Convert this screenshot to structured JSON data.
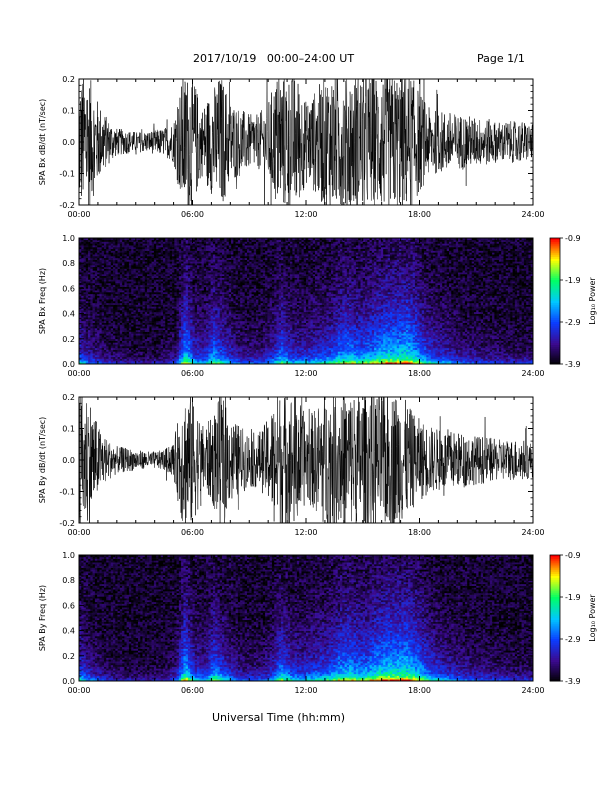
{
  "header": {
    "title": "2017/10/19   00:00–24:00 UT",
    "page": "Page 1/1"
  },
  "footer": {
    "xlabel": "Universal Time (hh:mm)"
  },
  "x_tick_labels": [
    "00:00",
    "06:00",
    "12:00",
    "18:00",
    "24:00"
  ],
  "colorbar": {
    "title": "Log₁₀ Power",
    "tick_labels": [
      "-0.9",
      "-1.9",
      "-2.9",
      "-3.9"
    ],
    "colors": [
      "#000000",
      "#3b0a8f",
      "#0b3dff",
      "#00c8ff",
      "#00ff66",
      "#ffff00",
      "#ff0000"
    ]
  },
  "chart_data": [
    {
      "type": "line",
      "ylabel": "SPA Bx dB/dt (nT/sec)",
      "xlim": [
        0,
        24
      ],
      "ylim": [
        -0.2,
        0.2
      ],
      "y_tick_labels": [
        "0.2",
        "0.1",
        "0.0",
        "-0.1",
        "-0.2"
      ],
      "x": [
        0,
        0.5,
        1,
        1.5,
        2,
        2.5,
        3,
        3.5,
        4,
        4.5,
        5,
        5.5,
        6,
        6.5,
        7,
        7.5,
        8,
        8.5,
        9,
        9.5,
        10,
        10.5,
        11,
        11.5,
        12,
        12.5,
        13,
        13.5,
        14,
        14.5,
        15,
        15.5,
        16,
        16.5,
        17,
        17.5,
        18,
        18.5,
        19,
        19.5,
        20,
        20.5,
        21,
        21.5,
        22,
        22.5,
        23,
        23.5,
        24
      ],
      "amplitude": [
        0.2,
        0.2,
        0.12,
        0.07,
        0.04,
        0.035,
        0.03,
        0.03,
        0.035,
        0.04,
        0.06,
        0.2,
        0.2,
        0.1,
        0.15,
        0.2,
        0.12,
        0.1,
        0.08,
        0.08,
        0.12,
        0.2,
        0.2,
        0.2,
        0.12,
        0.15,
        0.2,
        0.2,
        0.2,
        0.2,
        0.2,
        0.2,
        0.2,
        0.2,
        0.2,
        0.2,
        0.15,
        0.1,
        0.09,
        0.09,
        0.08,
        0.08,
        0.07,
        0.07,
        0.06,
        0.06,
        0.06,
        0.06,
        0.05
      ]
    },
    {
      "type": "heatmap",
      "ylabel": "SPA Bx Freq (Hz)",
      "xlim": [
        0,
        24
      ],
      "ylim": [
        0,
        1
      ],
      "y_tick_labels": [
        "1.0",
        "0.8",
        "0.6",
        "0.4",
        "0.2",
        "0.0"
      ],
      "zlim": [
        -3.9,
        -0.9
      ],
      "activity": [
        0.55,
        0.35,
        0.3,
        0.2,
        0.15,
        0.1,
        0.1,
        0.1,
        0.1,
        0.15,
        0.25,
        0.9,
        0.5,
        0.45,
        0.75,
        0.55,
        0.4,
        0.3,
        0.3,
        0.3,
        0.45,
        0.7,
        0.5,
        0.45,
        0.5,
        0.55,
        0.6,
        0.75,
        0.8,
        0.7,
        0.75,
        0.85,
        0.9,
        0.9,
        0.95,
        0.8,
        0.6,
        0.5,
        0.45,
        0.35,
        0.3,
        0.3,
        0.25,
        0.25,
        0.2,
        0.2,
        0.2,
        0.2
      ]
    },
    {
      "type": "line",
      "ylabel": "SPA By dB/dt (nT/sec)",
      "xlim": [
        0,
        24
      ],
      "ylim": [
        -0.2,
        0.2
      ],
      "y_tick_labels": [
        "0.2",
        "0.1",
        "0.0",
        "-0.1",
        "-0.2"
      ],
      "x": [
        0,
        0.5,
        1,
        1.5,
        2,
        2.5,
        3,
        3.5,
        4,
        4.5,
        5,
        5.5,
        6,
        6.5,
        7,
        7.5,
        8,
        8.5,
        9,
        9.5,
        10,
        10.5,
        11,
        11.5,
        12,
        12.5,
        13,
        13.5,
        14,
        14.5,
        15,
        15.5,
        16,
        16.5,
        17,
        17.5,
        18,
        18.5,
        19,
        19.5,
        20,
        20.5,
        21,
        21.5,
        22,
        22.5,
        23,
        23.5,
        24
      ],
      "amplitude": [
        0.2,
        0.2,
        0.1,
        0.06,
        0.04,
        0.035,
        0.03,
        0.025,
        0.025,
        0.03,
        0.05,
        0.2,
        0.2,
        0.1,
        0.12,
        0.2,
        0.12,
        0.1,
        0.08,
        0.08,
        0.12,
        0.2,
        0.2,
        0.2,
        0.12,
        0.15,
        0.2,
        0.2,
        0.2,
        0.2,
        0.2,
        0.2,
        0.2,
        0.2,
        0.2,
        0.15,
        0.12,
        0.1,
        0.09,
        0.09,
        0.08,
        0.08,
        0.07,
        0.07,
        0.06,
        0.06,
        0.06,
        0.06,
        0.05
      ]
    },
    {
      "type": "heatmap",
      "ylabel": "SPA By Freq (Hz)",
      "xlim": [
        0,
        24
      ],
      "ylim": [
        0,
        1
      ],
      "y_tick_labels": [
        "1.0",
        "0.8",
        "0.6",
        "0.4",
        "0.2",
        "0.0"
      ],
      "zlim": [
        -3.9,
        -0.9
      ],
      "activity": [
        0.6,
        0.4,
        0.3,
        0.2,
        0.15,
        0.1,
        0.1,
        0.1,
        0.12,
        0.15,
        0.3,
        0.9,
        0.5,
        0.45,
        0.75,
        0.55,
        0.4,
        0.3,
        0.3,
        0.3,
        0.45,
        0.75,
        0.55,
        0.5,
        0.55,
        0.6,
        0.65,
        0.8,
        0.85,
        0.75,
        0.8,
        0.9,
        0.95,
        0.95,
        0.95,
        0.85,
        0.65,
        0.55,
        0.45,
        0.4,
        0.35,
        0.3,
        0.3,
        0.25,
        0.25,
        0.2,
        0.2,
        0.2
      ]
    }
  ]
}
